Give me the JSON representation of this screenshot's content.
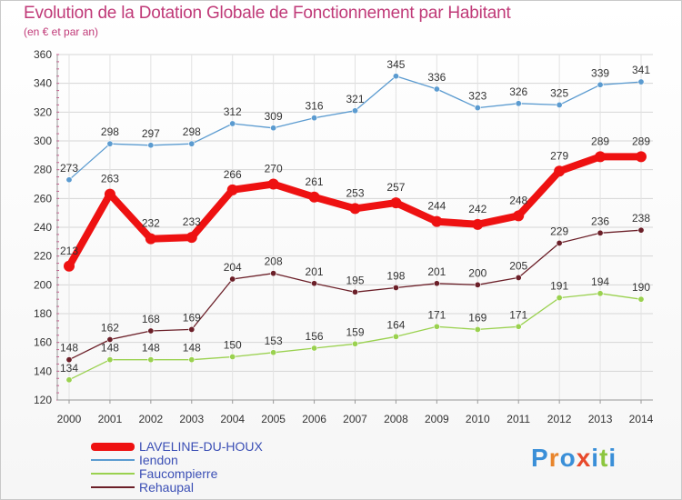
{
  "header": {
    "title": "Evolution de la Dotation Globale de Fonctionnement par Habitant",
    "subtitle": "(en € et par an)"
  },
  "brand": {
    "text": "Proxiti",
    "colors": [
      "#3a8fd8",
      "#e8852c",
      "#3a8fd8",
      "#e84a2c",
      "#3a8fd8",
      "#8cc63f",
      "#3a8fd8"
    ]
  },
  "chart_data": {
    "type": "line",
    "x": [
      2000,
      2001,
      2002,
      2003,
      2004,
      2005,
      2006,
      2007,
      2008,
      2009,
      2010,
      2011,
      2012,
      2013,
      2014
    ],
    "ylim": [
      120,
      360
    ],
    "yticks": [
      120,
      140,
      160,
      180,
      200,
      220,
      240,
      260,
      280,
      300,
      320,
      340,
      360
    ],
    "grid": true,
    "legend_position": "bottom-left",
    "series": [
      {
        "name": "Iendon",
        "color": "#5b9bd0",
        "values": [
          273,
          298,
          297,
          298,
          312,
          309,
          316,
          321,
          345,
          336,
          323,
          326,
          325,
          339,
          341
        ]
      },
      {
        "name": "LAVELINE-DU-HOUX",
        "color": "#ee1111",
        "values": [
          213,
          263,
          232,
          233,
          266,
          270,
          261,
          253,
          257,
          244,
          242,
          248,
          279,
          289,
          289
        ]
      },
      {
        "name": "Rehaupal",
        "color": "#6b1f28",
        "values": [
          148,
          162,
          168,
          169,
          204,
          208,
          201,
          195,
          198,
          201,
          200,
          205,
          229,
          236,
          238
        ]
      },
      {
        "name": "Faucompierre",
        "color": "#9ad14f",
        "values": [
          134,
          148,
          148,
          148,
          150,
          153,
          156,
          159,
          164,
          171,
          169,
          171,
          191,
          194,
          190
        ]
      }
    ],
    "legend": [
      {
        "name": "LAVELINE-DU-HOUX",
        "color": "#ee1111"
      },
      {
        "name": "Iendon",
        "color": "#5b9bd0"
      },
      {
        "name": "Faucompierre",
        "color": "#9ad14f"
      },
      {
        "name": "Rehaupal",
        "color": "#6b1f28"
      }
    ]
  }
}
